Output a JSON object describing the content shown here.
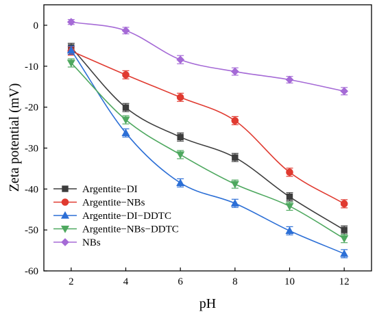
{
  "chart_data": {
    "type": "line",
    "title": "",
    "xlabel": "pH",
    "ylabel": "Zeta potential (mV)",
    "xlim": [
      1,
      13
    ],
    "ylim": [
      -60,
      5
    ],
    "xticks": [
      2,
      4,
      6,
      8,
      10,
      12
    ],
    "yticks": [
      0,
      -10,
      -20,
      -30,
      -40,
      -50,
      -60
    ],
    "grid": false,
    "legend_position": "bottom-left",
    "x": [
      2,
      4,
      6,
      8,
      10,
      12
    ],
    "series": [
      {
        "name": "Argentite−DI",
        "color": "#3d3d3d",
        "marker": "square",
        "values": [
          -5.4,
          -20.1,
          -27.3,
          -32.3,
          -41.9,
          -50.0
        ],
        "errors": [
          1.0,
          1.0,
          1.0,
          1.0,
          1.0,
          1.0
        ]
      },
      {
        "name": "Argentite−NBs",
        "color": "#e03a30",
        "marker": "circle",
        "values": [
          -6.3,
          -12.1,
          -17.6,
          -23.3,
          -35.9,
          -43.6
        ],
        "errors": [
          1.0,
          1.0,
          1.0,
          1.0,
          1.0,
          1.0
        ]
      },
      {
        "name": "Argentite−DI−DDTC",
        "color": "#2c6fd6",
        "marker": "triangle-up",
        "values": [
          -6.1,
          -26.3,
          -38.5,
          -43.5,
          -50.2,
          -55.8
        ],
        "errors": [
          1.0,
          1.0,
          1.0,
          1.0,
          1.0,
          1.0
        ]
      },
      {
        "name": "Argentite−NBs−DDTC",
        "color": "#4ea85f",
        "marker": "triangle-down",
        "values": [
          -9.2,
          -23.1,
          -31.6,
          -38.8,
          -44.2,
          -52.1
        ],
        "errors": [
          1.0,
          1.0,
          1.0,
          1.0,
          1.0,
          1.0
        ]
      },
      {
        "name": "NBs",
        "color": "#a56ad6",
        "marker": "diamond",
        "values": [
          0.8,
          -1.3,
          -8.4,
          -11.3,
          -13.3,
          -16.1
        ],
        "errors": [
          0.6,
          0.8,
          1.0,
          0.9,
          0.8,
          0.9
        ]
      }
    ]
  }
}
